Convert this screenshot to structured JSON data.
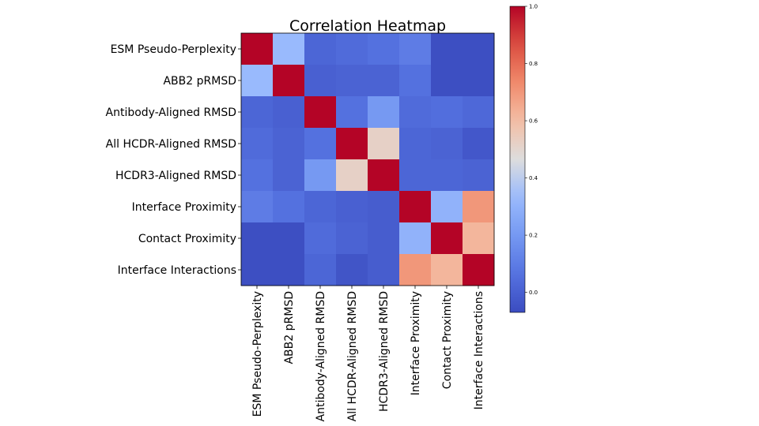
{
  "chart_data": {
    "type": "heatmap",
    "title": "Correlation Heatmap",
    "colormap": "coolwarm",
    "labels": [
      "ESM Pseudo-Perplexity",
      "ABB2 pRMSD",
      "Antibody-Aligned RMSD",
      "All HCDR-Aligned RMSD",
      "HCDR3-Aligned RMSD",
      "Interface Proximity",
      "Contact Proximity",
      "Interface Interactions"
    ],
    "matrix": [
      [
        1.0,
        0.33,
        0.02,
        0.04,
        0.06,
        0.1,
        -0.06,
        -0.06
      ],
      [
        0.33,
        1.0,
        0.0,
        0.01,
        0.01,
        0.06,
        -0.06,
        -0.06
      ],
      [
        0.02,
        0.0,
        1.0,
        0.06,
        0.2,
        0.04,
        0.05,
        0.03
      ],
      [
        0.04,
        0.01,
        0.06,
        1.0,
        0.52,
        0.02,
        0.01,
        -0.03
      ],
      [
        0.06,
        0.01,
        0.2,
        0.52,
        1.0,
        0.02,
        0.02,
        0.01
      ],
      [
        0.1,
        0.06,
        0.02,
        0.0,
        -0.01,
        1.0,
        0.3,
        0.7
      ],
      [
        -0.06,
        -0.06,
        0.04,
        0.01,
        -0.01,
        0.3,
        1.0,
        0.62
      ],
      [
        -0.06,
        -0.06,
        0.02,
        -0.04,
        -0.01,
        0.7,
        0.62,
        1.0
      ]
    ],
    "vmin": -0.07,
    "vmax": 1.0,
    "colorbar": {
      "ticks": [
        0.0,
        0.2,
        0.4,
        0.6,
        0.8,
        1.0
      ],
      "tick_labels": [
        "0.0",
        "0.2",
        "0.4",
        "0.6",
        "0.8",
        "1.0"
      ]
    }
  }
}
